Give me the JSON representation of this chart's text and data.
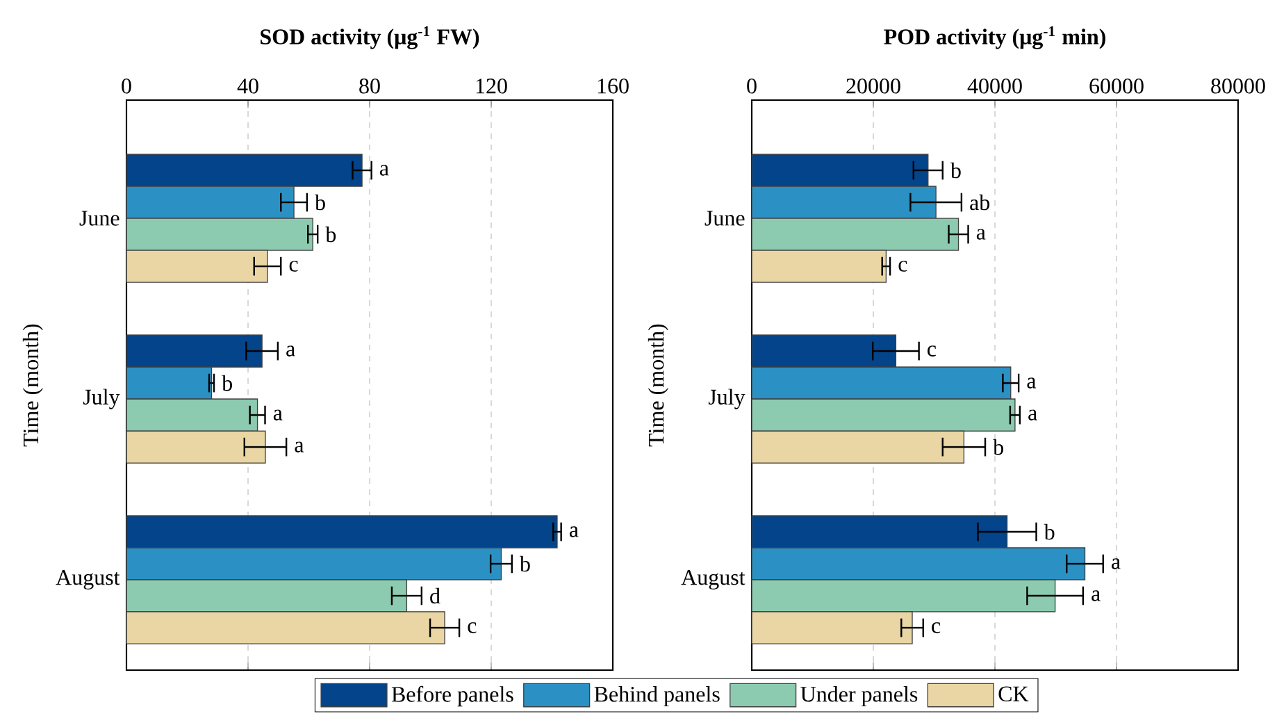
{
  "chart_data": [
    {
      "type": "bar",
      "orientation": "horizontal",
      "xlabel": "SOD activity (μg$^{-1}$ FW)",
      "ylabel": "Time (month)",
      "categories": [
        "June",
        "July",
        "August"
      ],
      "xlim": [
        0,
        160
      ],
      "xticks": [
        0,
        40,
        80,
        120,
        160
      ],
      "grid": "x",
      "legend": "bottom",
      "series": [
        {
          "name": "Before panels",
          "color": "#03448a",
          "values": [
            77.5,
            44.6,
            141.7
          ],
          "errors": [
            3.1,
            5.2,
            1.3
          ],
          "value_labels": [
            "a",
            "a",
            "a"
          ]
        },
        {
          "name": "Behind panels",
          "color": "#2b91c4",
          "values": [
            55.1,
            28.0,
            123.3
          ],
          "errors": [
            4.3,
            0.8,
            3.5
          ],
          "value_labels": [
            "b",
            "b",
            "b"
          ]
        },
        {
          "name": "Under panels",
          "color": "#8ccbb0",
          "values": [
            61.3,
            43.1,
            92.2
          ],
          "errors": [
            1.6,
            2.5,
            4.9
          ],
          "value_labels": [
            "b",
            "a",
            "d"
          ]
        },
        {
          "name": "CK",
          "color": "#ead6a4",
          "values": [
            46.4,
            45.7,
            104.7
          ],
          "errors": [
            4.4,
            6.9,
            4.8
          ],
          "value_labels": [
            "c",
            "a",
            "c"
          ]
        }
      ]
    },
    {
      "type": "bar",
      "orientation": "horizontal",
      "xlabel": "POD activity (μg$^{-1}$ min)",
      "ylabel": "Time (month)",
      "categories": [
        "June",
        "July",
        "August"
      ],
      "xlim": [
        0,
        80000
      ],
      "xticks": [
        0,
        20000,
        40000,
        60000,
        80000
      ],
      "grid": "x",
      "series": [
        {
          "color": "#03448a",
          "values": [
            29000,
            23700,
            42000
          ],
          "errors": [
            2400,
            3800,
            4800
          ],
          "value_labels": [
            "b",
            "c",
            "b"
          ]
        },
        {
          "color": "#2b91c4",
          "values": [
            30300,
            42600,
            54800
          ],
          "errors": [
            4200,
            1300,
            3000
          ],
          "value_labels": [
            "ab",
            "a",
            "a"
          ]
        },
        {
          "color": "#8ccbb0",
          "values": [
            34000,
            43300,
            49900
          ],
          "errors": [
            1600,
            800,
            4600
          ],
          "value_labels": [
            "a",
            "a",
            "a"
          ]
        },
        {
          "color": "#ead6a4",
          "values": [
            22100,
            34900,
            26400
          ],
          "errors": [
            650,
            3500,
            1800
          ],
          "value_labels": [
            "c",
            "b",
            "c"
          ]
        }
      ]
    }
  ]
}
